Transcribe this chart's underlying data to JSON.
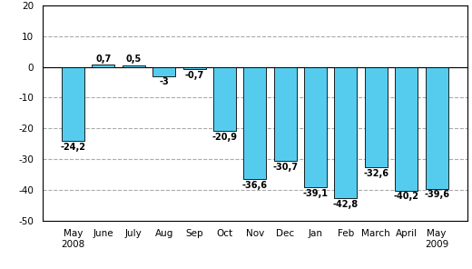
{
  "categories": [
    "May\n2008",
    "June",
    "July",
    "Aug",
    "Sep",
    "Oct",
    "Nov",
    "Dec",
    "Jan",
    "Feb",
    "March",
    "April",
    "May\n2009"
  ],
  "values": [
    -24.2,
    0.7,
    0.5,
    -3.0,
    -0.7,
    -20.9,
    -36.6,
    -30.7,
    -39.1,
    -42.8,
    -32.6,
    -40.2,
    -39.6
  ],
  "labels": [
    "-24,2",
    "0,7",
    "0,5",
    "-3",
    "-0,7",
    "-20,9",
    "-36,6",
    "-30,7",
    "-39,1",
    "-42,8",
    "-32,6",
    "-40,2",
    "-39,6"
  ],
  "bar_color": "#55CCEE",
  "bar_edge_color": "#000000",
  "ylim": [
    -50,
    20
  ],
  "yticks": [
    -50,
    -40,
    -30,
    -20,
    -10,
    0,
    10,
    20
  ],
  "ytick_labels": [
    "-50",
    "-40",
    "-30",
    "-20",
    "-10",
    "0",
    "10",
    "20"
  ],
  "grid_color": "#AAAAAA",
  "background_color": "#ffffff",
  "label_fontsize": 7,
  "tick_fontsize": 7.5,
  "bar_width": 0.75
}
